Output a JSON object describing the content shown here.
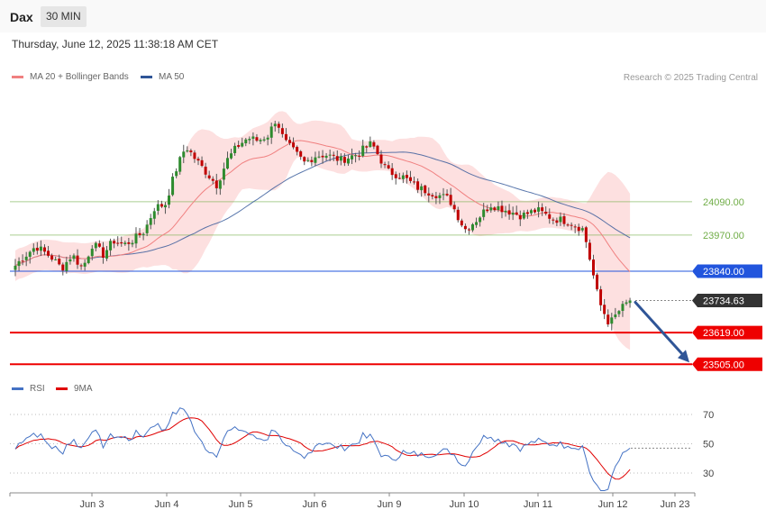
{
  "header": {
    "symbol": "Dax",
    "timeframe": "30 MIN"
  },
  "datetime": "Thursday, June 12, 2025 11:38:18 AM CET",
  "legend": [
    {
      "label": "MA 20 + Bollinger Bands",
      "color": "#f08080"
    },
    {
      "label": "MA 50",
      "color": "#2f5597"
    }
  ],
  "credit": "Research © 2025 Trading Central",
  "rsi_legend": [
    {
      "label": "RSI",
      "color": "#4472c4"
    },
    {
      "label": "9MA",
      "color": "#e00000"
    }
  ],
  "chart_data": [
    {
      "type": "candlestick",
      "x_labels": [
        "Jun 3",
        "Jun 4",
        "Jun 5",
        "Jun 6",
        "Jun 9",
        "Jun 10",
        "Jun 11",
        "Jun 12",
        "Jun 23"
      ],
      "y_range": [
        23420,
        24520
      ],
      "levels": [
        {
          "label": "24090.00",
          "value": 24090,
          "color": "#70ad47",
          "style": "thin"
        },
        {
          "label": "23970.00",
          "value": 23970,
          "color": "#70ad47",
          "style": "thin"
        },
        {
          "label": "23840.00",
          "value": 23840,
          "color": "#2255dd",
          "style": "medium"
        },
        {
          "label": "23734.63",
          "value": 23734.63,
          "color": "#333333",
          "style": "dotted"
        },
        {
          "label": "23619.00",
          "value": 23619,
          "color": "#ee0000",
          "style": "thick"
        },
        {
          "label": "23505.00",
          "value": 23505,
          "color": "#ee0000",
          "style": "thick"
        }
      ],
      "current_price": 23734.63,
      "up_color": "#2e8b2e",
      "down_color": "#c00000",
      "band_color": "#fde0e0",
      "projection_target": 23505,
      "series": [
        {
          "name": "MA 20",
          "color": "#f08080"
        },
        {
          "name": "MA 50",
          "color": "#2f5597"
        }
      ]
    },
    {
      "type": "line",
      "name": "RSI",
      "y_ticks": [
        70,
        50,
        30
      ],
      "y_range": [
        10,
        85
      ],
      "series": [
        {
          "name": "RSI",
          "color": "#4472c4"
        },
        {
          "name": "9MA",
          "color": "#e00000"
        }
      ]
    }
  ]
}
